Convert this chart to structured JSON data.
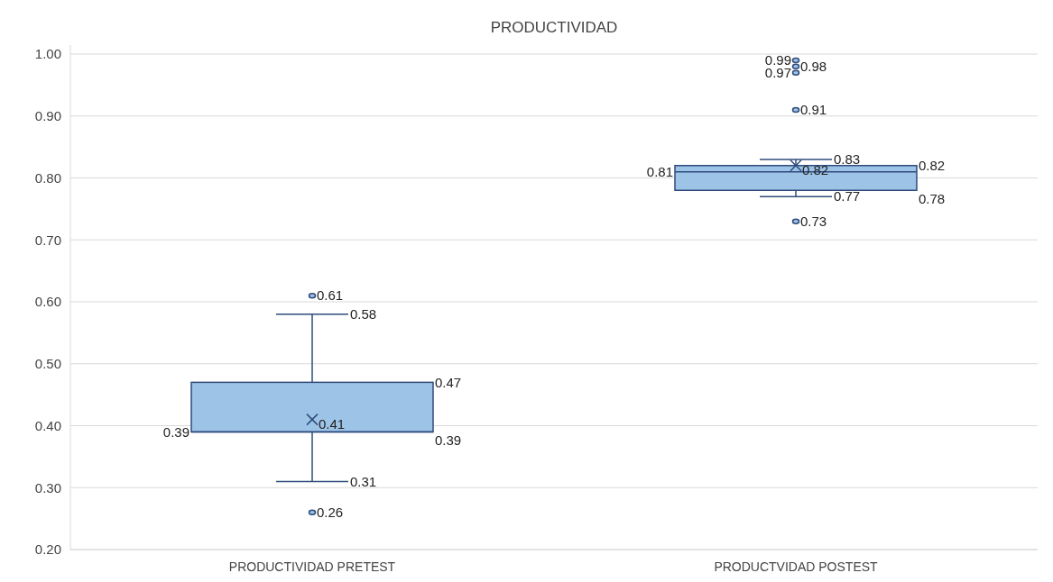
{
  "chart_data": {
    "type": "box",
    "title": "PRODUCTIVIDAD",
    "categories": [
      "PRODUCTIVIDAD PRETEST",
      "PRODUCTVIDAD POSTEST"
    ],
    "boxes": [
      {
        "low": 0.31,
        "q1": 0.39,
        "median": 0.39,
        "q3": 0.47,
        "high": 0.58,
        "mean": 0.41,
        "outliers": [
          0.61,
          0.26
        ]
      },
      {
        "low": 0.77,
        "q1": 0.78,
        "median": 0.81,
        "q3": 0.82,
        "high": 0.83,
        "mean": 0.82,
        "outliers": [
          0.99,
          0.98,
          0.97,
          0.91,
          0.73
        ]
      }
    ],
    "color": "#9dc3e6",
    "ylim": [
      0.2,
      1.0
    ],
    "yticks": [
      {
        "value": 0.2,
        "label": "0.20"
      },
      {
        "value": 0.3,
        "label": "0.30"
      },
      {
        "value": 0.4,
        "label": "0.40"
      },
      {
        "value": 0.5,
        "label": "0.50"
      },
      {
        "value": 0.6,
        "label": "0.60"
      },
      {
        "value": 0.7,
        "label": "0.70"
      },
      {
        "value": 0.8,
        "label": "0.80"
      },
      {
        "value": 0.9,
        "label": "0.90"
      },
      {
        "value": 1.0,
        "label": "1.00"
      }
    ],
    "grid": "y",
    "annotations": [
      "0.39",
      "0.39",
      "0.47",
      "0.58",
      "0.31",
      "0.41",
      "0.61",
      "0.26",
      "0.81",
      "0.78",
      "0.82",
      "0.83",
      "0.77",
      "0.82",
      "0.99",
      "0.98",
      "0.97",
      "0.91",
      "0.73"
    ]
  }
}
